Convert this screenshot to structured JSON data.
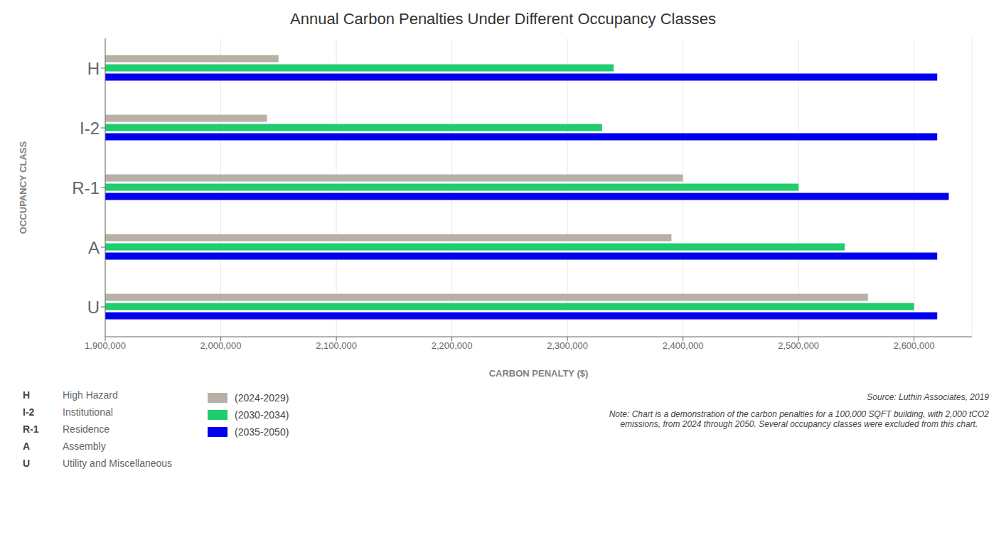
{
  "chart_data": {
    "type": "bar",
    "orientation": "horizontal",
    "title": "Annual Carbon Penalties Under Different Occupancy Classes",
    "categories": [
      "U",
      "A",
      "R-1",
      "I-2",
      "H"
    ],
    "series": [
      {
        "name": "(2024-2029)",
        "color": "#b8b0a5",
        "values": [
          2560000,
          2390000,
          2400000,
          2040000,
          2050000
        ]
      },
      {
        "name": "(2030-2034)",
        "color": "#1fcc6e",
        "values": [
          2600000,
          2540000,
          2500000,
          2330000,
          2340000
        ]
      },
      {
        "name": "(2035-2050)",
        "color": "#0000ee",
        "values": [
          2620000,
          2620000,
          2630000,
          2620000,
          2620000
        ]
      }
    ],
    "xlabel": "CARBON PENALTY ($)",
    "ylabel": "OCCUPANCY CLASS",
    "xlim": [
      1900000,
      2650000
    ],
    "xticks": [
      {
        "value": 1900000,
        "label": "1,900,000"
      },
      {
        "value": 2000000,
        "label": "2,000,000"
      },
      {
        "value": 2100000,
        "label": "2,100,000"
      },
      {
        "value": 2200000,
        "label": "2,200,000"
      },
      {
        "value": 2300000,
        "label": "2,300,000"
      },
      {
        "value": 2400000,
        "label": "2,400,000"
      },
      {
        "value": 2500000,
        "label": "2,500,000"
      },
      {
        "value": 2600000,
        "label": "2,600,000"
      }
    ],
    "grid": true,
    "annotations": [
      {
        "label": "H",
        "text": "High Hazard"
      },
      {
        "label": "I-2",
        "text": "Institutional"
      },
      {
        "label": "R-1",
        "text": "Residence"
      },
      {
        "label": "A",
        "text": "Assembly"
      },
      {
        "label": "U",
        "text": "Utility and Miscellaneous"
      }
    ],
    "source": "Source: Luthin Associates, 2019",
    "note": "Note: Chart is a demonstration of the carbon penalties for a 100,000 SQFT building, with 2,000 tCO2\nemissions, from 2024 through 2050. Several occupancy classes were excluded from this chart."
  }
}
